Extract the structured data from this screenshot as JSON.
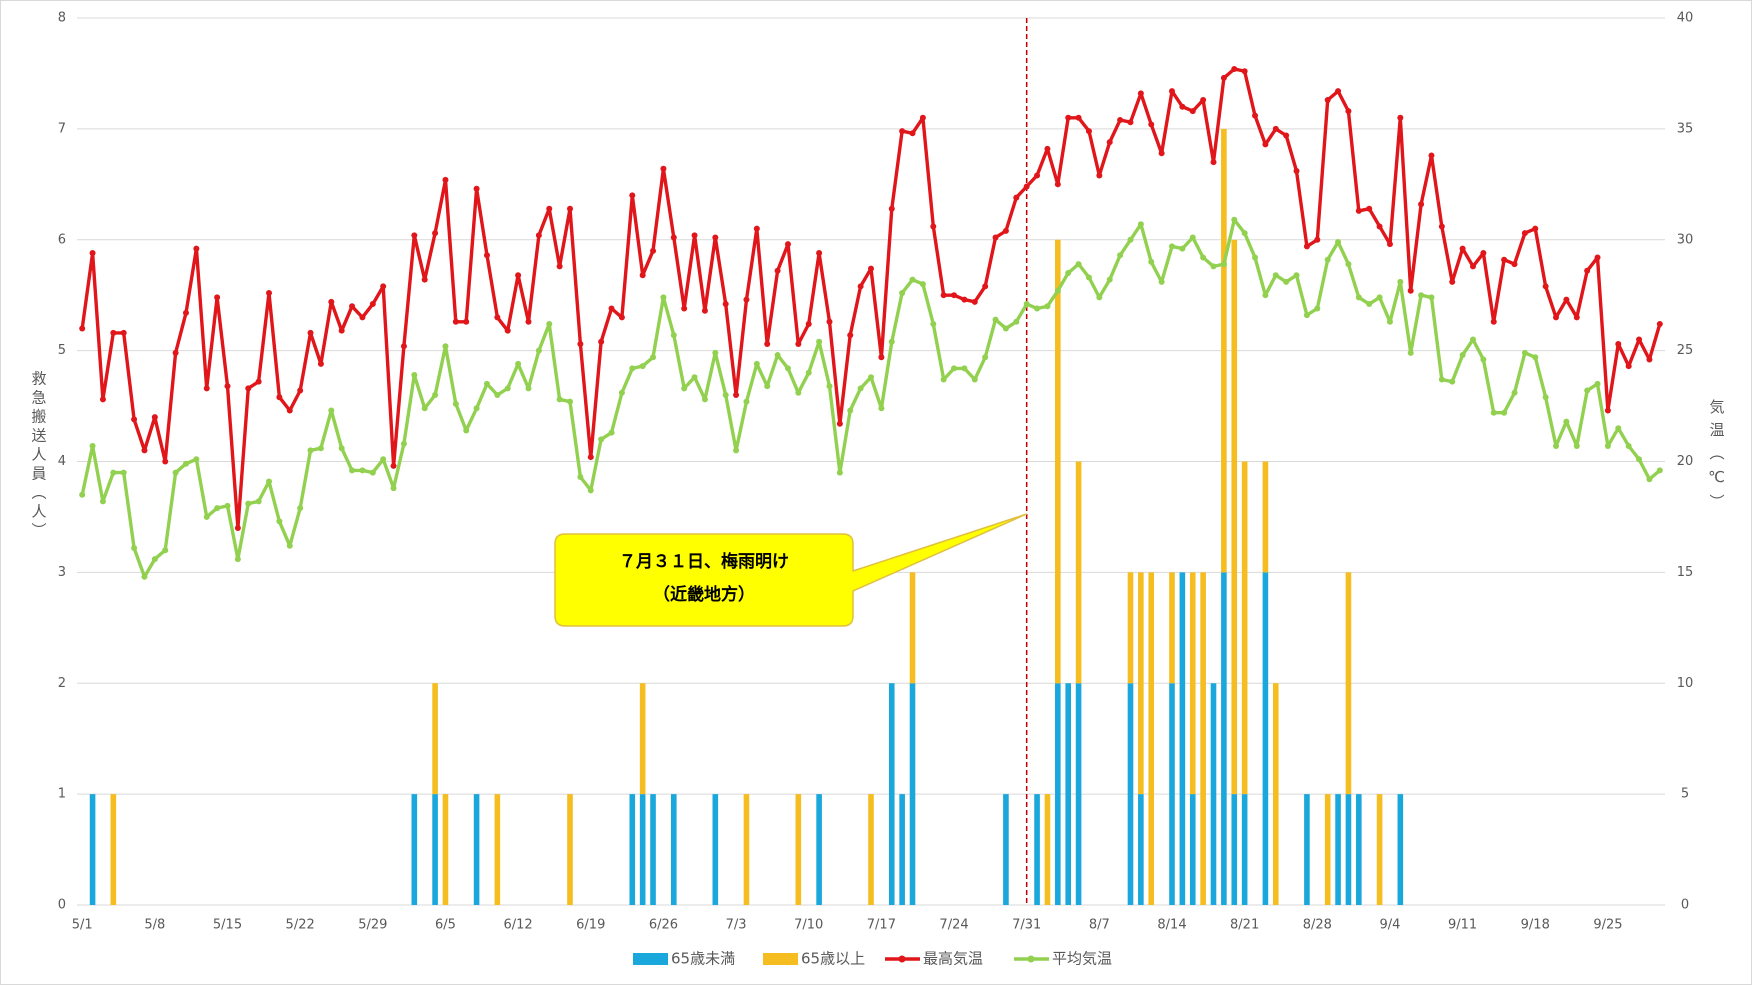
{
  "chart_data": {
    "type": "combo",
    "categories": [
      "5/1",
      null,
      null,
      null,
      null,
      null,
      null,
      "5/8",
      null,
      null,
      null,
      null,
      null,
      null,
      "5/15",
      null,
      null,
      null,
      null,
      null,
      null,
      "5/22",
      null,
      null,
      null,
      null,
      null,
      null,
      "5/29",
      null,
      null,
      null,
      null,
      null,
      null,
      "6/5",
      null,
      null,
      null,
      null,
      null,
      null,
      "6/12",
      null,
      null,
      null,
      null,
      null,
      null,
      "6/19",
      null,
      null,
      null,
      null,
      null,
      null,
      "6/26",
      null,
      null,
      null,
      null,
      null,
      null,
      "7/3",
      null,
      null,
      null,
      null,
      null,
      null,
      "7/10",
      null,
      null,
      null,
      null,
      null,
      null,
      "7/17",
      null,
      null,
      null,
      null,
      null,
      null,
      "7/24",
      null,
      null,
      null,
      null,
      null,
      null,
      "7/31",
      null,
      null,
      null,
      null,
      null,
      null,
      "8/7",
      null,
      null,
      null,
      null,
      null,
      null,
      "8/14",
      null,
      null,
      null,
      null,
      null,
      null,
      "8/21",
      null,
      null,
      null,
      null,
      null,
      null,
      "8/28",
      null,
      null,
      null,
      null,
      null,
      null,
      "9/4",
      null,
      null,
      null,
      null,
      null,
      null,
      "9/11",
      null,
      null,
      null,
      null,
      null,
      null,
      "9/18",
      null,
      null,
      null,
      null,
      null,
      null,
      "9/25",
      null,
      null,
      null,
      null,
      null
    ],
    "series": [
      {
        "name": "65歳未満",
        "type": "bar",
        "color": "#1aa7dc",
        "values": [
          0,
          1,
          0,
          0,
          0,
          0,
          0,
          0,
          0,
          0,
          0,
          0,
          0,
          0,
          0,
          0,
          0,
          0,
          0,
          0,
          0,
          0,
          0,
          0,
          0,
          0,
          0,
          0,
          0,
          0,
          0,
          0,
          1,
          0,
          1,
          0,
          0,
          0,
          1,
          0,
          0,
          0,
          0,
          0,
          0,
          0,
          0,
          0,
          0,
          0,
          0,
          0,
          0,
          1,
          1,
          1,
          0,
          1,
          0,
          0,
          0,
          1,
          0,
          0,
          0,
          0,
          0,
          0,
          0,
          0,
          0,
          1,
          0,
          0,
          0,
          0,
          0,
          0,
          2,
          1,
          2,
          0,
          0,
          0,
          0,
          0,
          0,
          0,
          0,
          1,
          0,
          0,
          1,
          0,
          2,
          2,
          2,
          0,
          0,
          0,
          0,
          2,
          1,
          0,
          0,
          2,
          3,
          1,
          0,
          2,
          3,
          1,
          1,
          0,
          3,
          0,
          0,
          0,
          1,
          0,
          0,
          1,
          1,
          1,
          0,
          0,
          0,
          1,
          0,
          0,
          0,
          0,
          0,
          0,
          0,
          0,
          0,
          0,
          0,
          0,
          0,
          0,
          0,
          0,
          0,
          0,
          0,
          0,
          0,
          0,
          0,
          0,
          0
        ]
      },
      {
        "name": "65歳以上",
        "type": "bar",
        "color": "#f5bd1f",
        "values": [
          0,
          0,
          0,
          1,
          0,
          0,
          0,
          0,
          0,
          0,
          0,
          0,
          0,
          0,
          0,
          0,
          0,
          0,
          0,
          0,
          0,
          0,
          0,
          0,
          0,
          0,
          0,
          0,
          0,
          0,
          0,
          0,
          0,
          0,
          1,
          1,
          0,
          0,
          0,
          0,
          1,
          0,
          0,
          0,
          0,
          0,
          0,
          1,
          0,
          0,
          0,
          0,
          0,
          0,
          1,
          0,
          0,
          0,
          0,
          0,
          0,
          0,
          0,
          0,
          1,
          0,
          0,
          0,
          0,
          1,
          0,
          0,
          0,
          0,
          0,
          0,
          1,
          0,
          0,
          0,
          1,
          0,
          0,
          0,
          0,
          0,
          0,
          0,
          0,
          0,
          0,
          0,
          0,
          1,
          4,
          0,
          2,
          0,
          0,
          0,
          0,
          1,
          2,
          3,
          0,
          1,
          0,
          2,
          3,
          0,
          4,
          5,
          3,
          0,
          1,
          2,
          0,
          0,
          0,
          0,
          1,
          0,
          2,
          0,
          0,
          1,
          0,
          0,
          0,
          0,
          0,
          0,
          0,
          0,
          0,
          0,
          0,
          0,
          0,
          0,
          0,
          0,
          0,
          0,
          0,
          0,
          0,
          0,
          0,
          0,
          0,
          0,
          0
        ]
      },
      {
        "name": "最高気温",
        "type": "line",
        "axis": "y2",
        "color": "#e0161b",
        "values": [
          26.0,
          29.4,
          22.8,
          25.8,
          25.8,
          21.9,
          20.5,
          22.0,
          20.0,
          24.9,
          26.7,
          29.6,
          23.3,
          27.4,
          23.4,
          17.0,
          23.3,
          23.6,
          27.6,
          22.9,
          22.3,
          23.2,
          25.8,
          24.4,
          27.2,
          25.9,
          27.0,
          26.5,
          27.1,
          27.9,
          19.8,
          25.2,
          30.2,
          28.2,
          30.3,
          32.7,
          26.3,
          26.3,
          32.3,
          29.3,
          26.5,
          25.9,
          28.4,
          26.3,
          30.2,
          31.4,
          28.8,
          31.4,
          25.3,
          20.2,
          25.4,
          26.9,
          26.5,
          32.0,
          28.4,
          29.5,
          33.2,
          30.1,
          26.9,
          30.2,
          26.8,
          30.1,
          27.1,
          23.0,
          27.3,
          30.5,
          25.3,
          28.6,
          29.8,
          25.3,
          26.2,
          29.4,
          26.3,
          21.7,
          25.7,
          27.9,
          28.7,
          24.7,
          31.4,
          34.9,
          34.8,
          35.5,
          30.6,
          27.5,
          27.5,
          27.3,
          27.2,
          27.9,
          30.1,
          30.4,
          31.9,
          32.4,
          32.9,
          34.1,
          32.5,
          35.5,
          35.5,
          34.9,
          32.9,
          34.4,
          35.4,
          35.3,
          36.6,
          35.2,
          33.9,
          36.7,
          36.0,
          35.8,
          36.3,
          33.5,
          37.3,
          37.7,
          37.6,
          35.6,
          34.3,
          35.0,
          34.7,
          33.1,
          29.7,
          30.0,
          36.3,
          36.7,
          35.8,
          31.3,
          31.4,
          30.6,
          29.8,
          35.5,
          27.7,
          31.6,
          33.8,
          30.6,
          28.1,
          29.6,
          28.8,
          29.4,
          26.3,
          29.1,
          28.9,
          30.3,
          30.5,
          27.9,
          26.5,
          27.3,
          26.5,
          28.6,
          29.2,
          22.3,
          25.3,
          24.3,
          25.5,
          24.6,
          26.2
        ]
      },
      {
        "name": "平均気温",
        "type": "line",
        "axis": "y2",
        "color": "#92d050",
        "values": [
          18.5,
          20.7,
          18.2,
          19.5,
          19.5,
          16.1,
          14.8,
          15.6,
          16.0,
          19.5,
          19.9,
          20.1,
          17.5,
          17.9,
          18.0,
          15.6,
          18.1,
          18.2,
          19.1,
          17.3,
          16.2,
          17.9,
          20.5,
          20.6,
          22.3,
          20.6,
          19.6,
          19.6,
          19.5,
          20.1,
          18.8,
          20.8,
          23.9,
          22.4,
          23.0,
          25.2,
          22.6,
          21.4,
          22.4,
          23.5,
          23.0,
          23.3,
          24.4,
          23.3,
          25.0,
          26.2,
          22.8,
          22.7,
          19.3,
          18.7,
          21.0,
          21.3,
          23.1,
          24.2,
          24.3,
          24.7,
          27.4,
          25.7,
          23.3,
          23.8,
          22.8,
          24.9,
          23.0,
          20.5,
          22.7,
          24.4,
          23.4,
          24.8,
          24.2,
          23.1,
          24.0,
          25.4,
          23.4,
          19.5,
          22.3,
          23.3,
          23.8,
          22.4,
          25.4,
          27.6,
          28.2,
          28.0,
          26.2,
          23.7,
          24.2,
          24.2,
          23.7,
          24.7,
          26.4,
          26.0,
          26.3,
          27.1,
          26.9,
          27.0,
          27.7,
          28.5,
          28.9,
          28.3,
          27.4,
          28.2,
          29.3,
          30.0,
          30.7,
          29.0,
          28.1,
          29.7,
          29.6,
          30.1,
          29.2,
          28.8,
          28.9,
          30.9,
          30.3,
          29.2,
          27.5,
          28.4,
          28.1,
          28.4,
          26.6,
          26.9,
          29.1,
          29.9,
          28.9,
          27.4,
          27.1,
          27.4,
          26.3,
          28.1,
          24.9,
          27.5,
          27.4,
          23.7,
          23.6,
          24.8,
          25.5,
          24.6,
          22.2,
          22.2,
          23.1,
          24.9,
          24.7,
          22.9,
          20.7,
          21.8,
          20.7,
          23.2,
          23.5,
          20.7,
          21.5,
          20.7,
          20.1,
          19.2,
          19.6
        ]
      }
    ],
    "stacked": true,
    "ylabel": "救急搬送人員（人）",
    "y2label": "気温（℃）",
    "ylim": [
      0,
      8
    ],
    "yticks": [
      0,
      1,
      2,
      3,
      4,
      5,
      6,
      7,
      8
    ],
    "y2lim": [
      0,
      40
    ],
    "y2ticks": [
      0,
      5,
      10,
      15,
      20,
      25,
      30,
      35,
      40
    ],
    "grid": true,
    "legend": "bottom",
    "annotation": {
      "lines": [
        "７月３１日、梅雨明け",
        "（近畿地方）"
      ],
      "at": "7/31"
    }
  }
}
